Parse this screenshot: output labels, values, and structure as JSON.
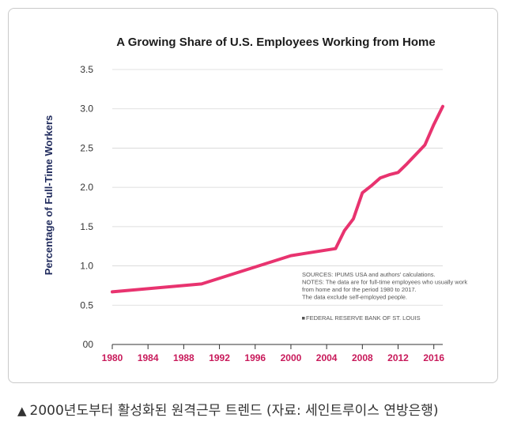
{
  "chart_data": {
    "type": "line",
    "title": "A Growing Share of U.S. Employees Working from Home",
    "xlabel": "",
    "ylabel": "Percentage of Full-Time Workers",
    "xlim": [
      1980,
      2017
    ],
    "ylim": [
      0,
      3.5
    ],
    "x_ticks": [
      "1980",
      "1984",
      "1988",
      "1992",
      "1996",
      "2000",
      "2004",
      "2008",
      "2012",
      "2016"
    ],
    "y_ticks": [
      "00",
      "0.5",
      "1.0",
      "1.5",
      "2.0",
      "2.5",
      "3.0",
      "3.5"
    ],
    "grid": true,
    "series": [
      {
        "color": "#e8336f",
        "x": [
          1980,
          1990,
          2000,
          2005,
          2006,
          2007,
          2008,
          2009,
          2010,
          2011,
          2012,
          2013,
          2014,
          2015,
          2016,
          2017
        ],
        "y": [
          0.67,
          0.77,
          1.13,
          1.22,
          1.45,
          1.6,
          1.93,
          2.02,
          2.12,
          2.16,
          2.19,
          2.3,
          2.42,
          2.54,
          2.8,
          3.03
        ]
      }
    ],
    "notes": [
      "SOURCES: IPUMS USA and authors' calculations.",
      "NOTES: The data are for full-time employees who usually work",
      "from home and for the period 1980 to 2017.",
      "The data exclude self-employed people."
    ],
    "source_label": "FEDERAL RESERVE BANK OF ST. LOUIS"
  },
  "caption": {
    "icon": "triangle-up-icon",
    "text": "2000년도부터 활성화된 원격근무 트렌드 (자료: 세인트루이스 연방은행)"
  }
}
